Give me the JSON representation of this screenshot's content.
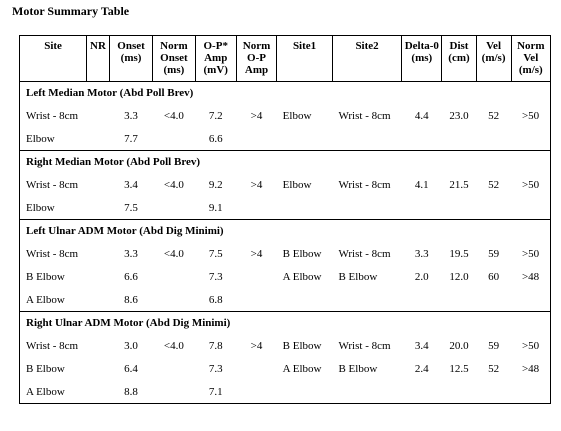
{
  "page": {
    "title": "Motor Summary Table"
  },
  "table": {
    "headers": [
      "Site",
      "NR",
      "Onset (ms)",
      "Norm Onset (ms)",
      "O-P* Amp (mV)",
      "Norm O-P Amp",
      "Site1",
      "Site2",
      "Delta-0 (ms)",
      "Dist (cm)",
      "Vel (m/s)",
      "Norm Vel (m/s)"
    ],
    "groups": [
      {
        "name": "Left Median Motor (Abd Poll Brev)",
        "rows": [
          [
            "Wrist - 8cm",
            "",
            "3.3",
            "<4.0",
            "7.2",
            ">4",
            "Elbow",
            "Wrist - 8cm",
            "4.4",
            "23.0",
            "52",
            ">50"
          ],
          [
            "Elbow",
            "",
            "7.7",
            "",
            "6.6",
            "",
            "",
            "",
            "",
            "",
            "",
            ""
          ]
        ]
      },
      {
        "name": "Right Median Motor (Abd Poll Brev)",
        "rows": [
          [
            "Wrist - 8cm",
            "",
            "3.4",
            "<4.0",
            "9.2",
            ">4",
            "Elbow",
            "Wrist - 8cm",
            "4.1",
            "21.5",
            "52",
            ">50"
          ],
          [
            "Elbow",
            "",
            "7.5",
            "",
            "9.1",
            "",
            "",
            "",
            "",
            "",
            "",
            ""
          ]
        ]
      },
      {
        "name": "Left Ulnar ADM Motor (Abd Dig Minimi)",
        "rows": [
          [
            "Wrist - 8cm",
            "",
            "3.3",
            "<4.0",
            "7.5",
            ">4",
            "B Elbow",
            "Wrist - 8cm",
            "3.3",
            "19.5",
            "59",
            ">50"
          ],
          [
            "B Elbow",
            "",
            "6.6",
            "",
            "7.3",
            "",
            "A Elbow",
            "B Elbow",
            "2.0",
            "12.0",
            "60",
            ">48"
          ],
          [
            "A Elbow",
            "",
            "8.6",
            "",
            "6.8",
            "",
            "",
            "",
            "",
            "",
            "",
            ""
          ]
        ]
      },
      {
        "name": "Right Ulnar ADM Motor (Abd Dig Minimi)",
        "rows": [
          [
            "Wrist - 8cm",
            "",
            "3.0",
            "<4.0",
            "7.8",
            ">4",
            "B Elbow",
            "Wrist - 8cm",
            "3.4",
            "20.0",
            "59",
            ">50"
          ],
          [
            "B Elbow",
            "",
            "6.4",
            "",
            "7.3",
            "",
            "A Elbow",
            "B Elbow",
            "2.4",
            "12.5",
            "52",
            ">48"
          ],
          [
            "A Elbow",
            "",
            "8.8",
            "",
            "7.1",
            "",
            "",
            "",
            "",
            "",
            "",
            ""
          ]
        ]
      }
    ]
  }
}
